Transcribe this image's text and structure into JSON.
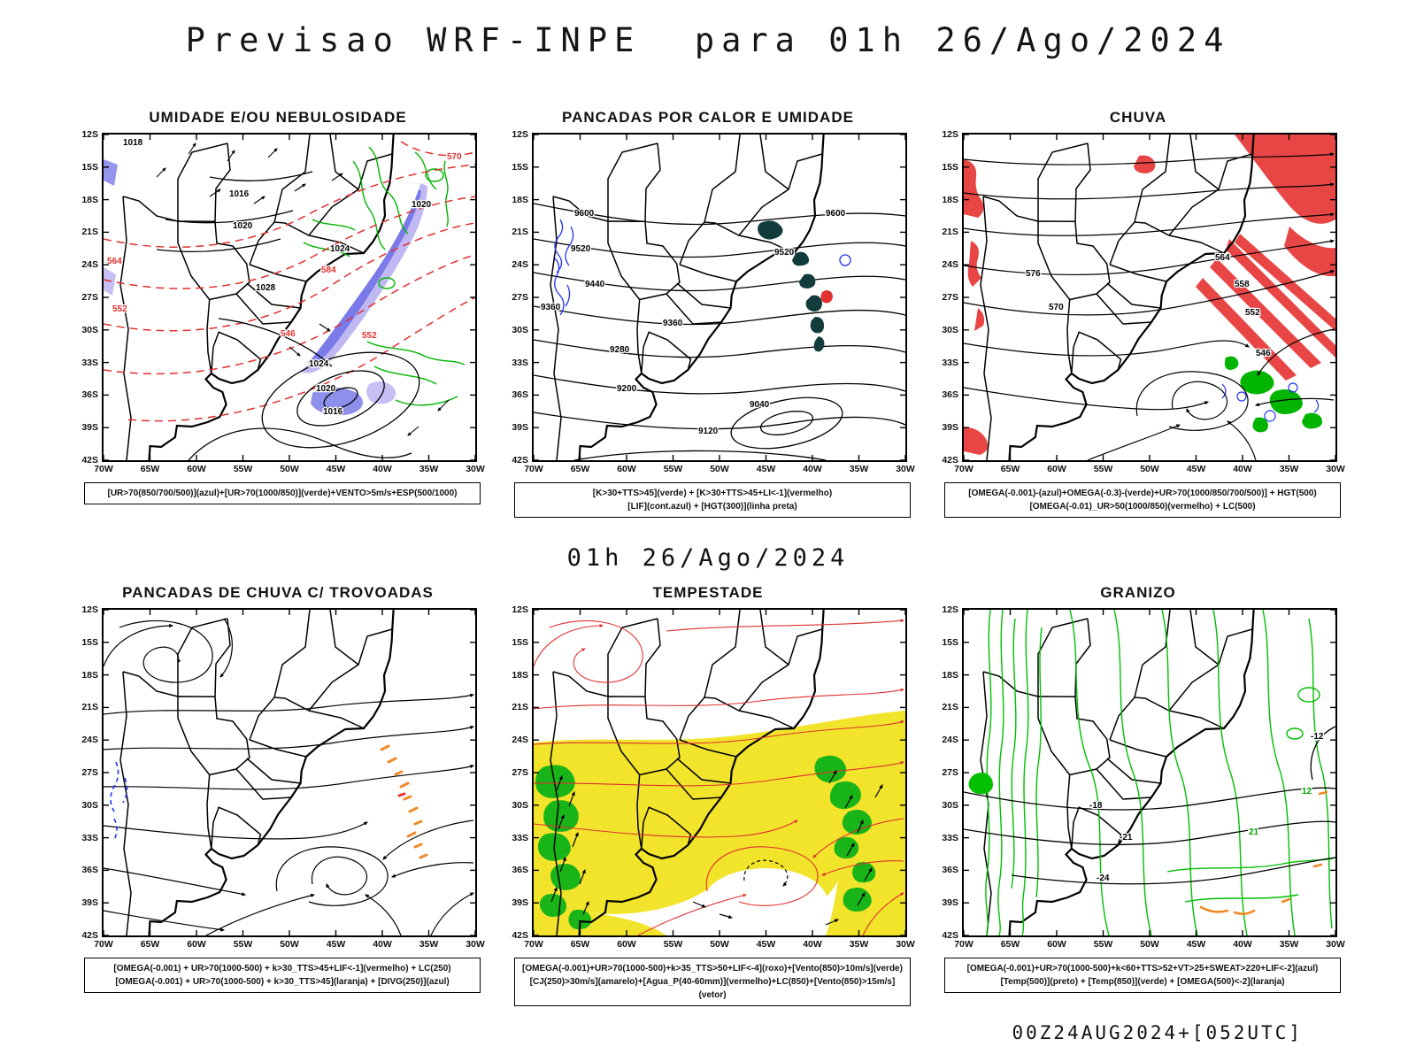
{
  "header": {
    "title": "Previsao WRF-INPE  para 01h 26/Ago/2024"
  },
  "mid_label": "01h 26/Ago/2024",
  "footer": "00Z24AUG2024+[052UTC]",
  "axes": {
    "lat": [
      "12S",
      "15S",
      "18S",
      "21S",
      "24S",
      "27S",
      "30S",
      "33S",
      "36S",
      "39S",
      "42S"
    ],
    "lon": [
      "70W",
      "65W",
      "60W",
      "55W",
      "50W",
      "45W",
      "40W",
      "35W",
      "30W"
    ]
  },
  "colors": {
    "contour_black": "#000000",
    "contour_red": "#e03030",
    "contour_green": "#00b400",
    "contour_blue": "#2233ee",
    "shade_cloud_blue": "#7a7ae8",
    "shade_rain_red": "#e84545",
    "shade_storm_yellow": "#f2e42a",
    "shade_wind_green": "#18b418",
    "shade_dark_teal": "#123b3b",
    "mark_orange": "#f08a28"
  },
  "panels": [
    {
      "title": "UMIDADE E/OU NEBULOSIDADE",
      "caption1": "[UR>70(850/700/500)](azul)+[UR>70(1000/850)](verde)+VENTO>5m/s+ESP(500/1000)",
      "caption2": "",
      "labels": [
        "1018",
        "1016",
        "1020",
        "1020",
        "1024",
        "1028",
        "1024",
        "1020",
        "1016",
        "564",
        "552",
        "546",
        "552",
        "584",
        "570"
      ]
    },
    {
      "title": "PANCADAS POR CALOR E UMIDADE",
      "caption1": "[K>30+TTS>45](verde) + [K>30+TTS>45+LI<-1](vermelho)",
      "caption2": "[LIF](cont.azul) + [HGT(300)](linha preta)",
      "labels": [
        "9600",
        "9600",
        "9520",
        "9520",
        "9440",
        "9360",
        "9360",
        "9280",
        "9200",
        "9120",
        "9040"
      ]
    },
    {
      "title": "CHUVA",
      "caption1": "[OMEGA(-0.001)-(azul)+OMEGA(-0.3)-(verde)+UR>70(1000/850/700/500)] + HGT(500)",
      "caption2": "[OMEGA(-0.01)_UR>50(1000/850)(vermelho) + LC(500)",
      "labels": [
        "576",
        "570",
        "564",
        "558",
        "552",
        "546"
      ]
    },
    {
      "title": "PANCADAS DE CHUVA C/ TROVOADAS",
      "caption1": "[OMEGA(-0.001) + UR>70(1000-500) + k>30_TTS>45+LIF<-1](vermelho) + LC(250)",
      "caption2": "[OMEGA(-0.001) + UR>70(1000-500) + k>30_TTS>45](laranja) + [DIVG(250)](azul)",
      "labels": []
    },
    {
      "title": "TEMPESTADE",
      "caption1": "[OMEGA(-0.001)+UR>70(1000-500)+k>35_TTS>50+LIF<-4](roxo)+[Vento(850)>10m/s](verde)",
      "caption2": "[CJ(250)>30m/s](amarelo)+[Agua_P(40-60mm)](vermelho)+LC(850)+[Vento(850)>15m/s](vetor)",
      "labels": []
    },
    {
      "title": "GRANIZO",
      "caption1": "[OMEGA(-0.001)+UR>70(1000-500)+k<60+TTS>52+VT>25+SWEAT>220+LIF<-2](azul)",
      "caption2": "[Temp(500)](preto) + [Temp(850)](verde) + [OMEGA(500)<-2](laranja)",
      "labels": [
        "-18",
        "-21",
        "-24",
        "-12",
        "12",
        "21"
      ]
    }
  ]
}
